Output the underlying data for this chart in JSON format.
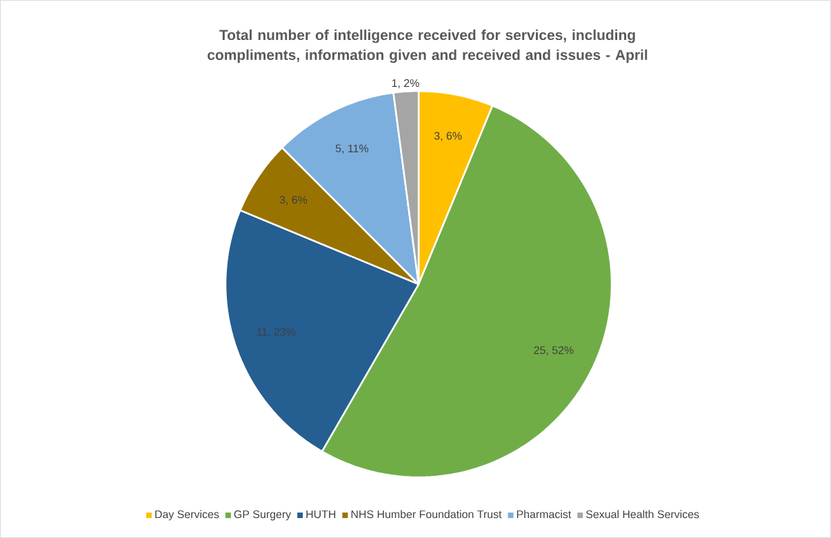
{
  "chart_data": {
    "type": "pie",
    "title": "Total number of  intelligence received for services, including compliments, information given and received and issues - April",
    "categories": [
      "Day Services",
      "GP Surgery",
      "HUTH",
      "NHS Humber Foundation Trust",
      "Pharmacist",
      "Sexual Health Services"
    ],
    "values": [
      3,
      25,
      11,
      3,
      5,
      1
    ],
    "colors": [
      "#ffc000",
      "#70ad47",
      "#255e91",
      "#997300",
      "#7cafdd",
      "#a5a5a5"
    ],
    "value_labels": [
      "3, 6%",
      "25, 52%",
      "11, 23%",
      "3, 6%",
      "5, 11%",
      "1, 2%"
    ],
    "legend": "bottom"
  }
}
